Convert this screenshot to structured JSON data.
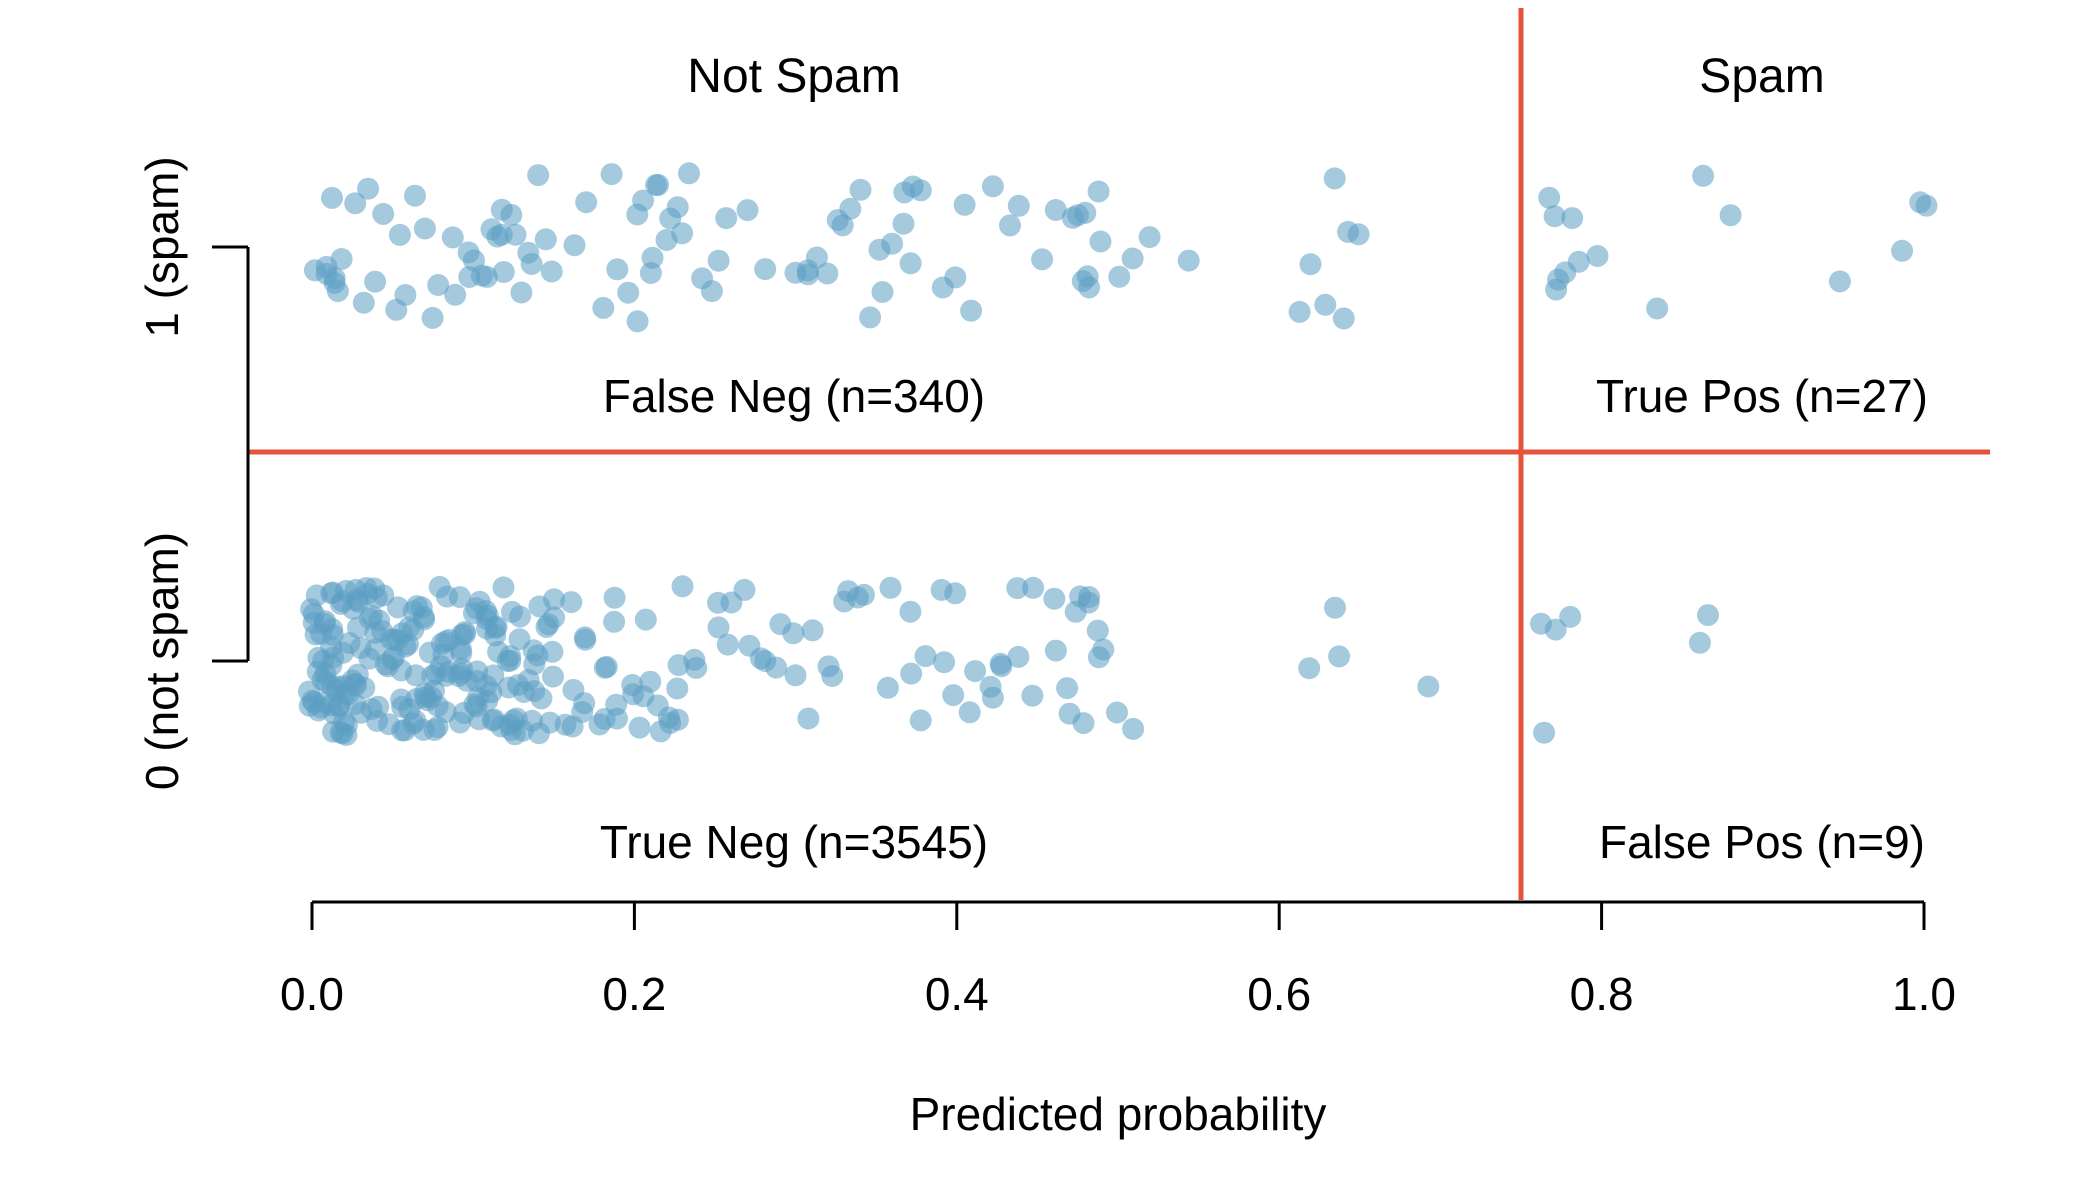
{
  "chart_data": {
    "type": "scatter",
    "title": "",
    "xlabel": "Predicted probability",
    "ylabel": "",
    "xlim": [
      0.0,
      1.0
    ],
    "x_ticks": [
      0.0,
      0.2,
      0.4,
      0.6,
      0.8,
      1.0
    ],
    "x_tick_labels": [
      "0.0",
      "0.2",
      "0.4",
      "0.6",
      "0.8",
      "1.0"
    ],
    "y_categories": [
      "0 (not spam)",
      "1 (spam)"
    ],
    "threshold": 0.75,
    "grid": false,
    "point_color": "#5b9fc2",
    "line_color": "#e5533c",
    "regions": {
      "not_spam_title": "Not Spam",
      "spam_title": "Spam",
      "false_neg": "False Neg (n=340)",
      "true_pos": "True Pos (n=27)",
      "true_neg": "True Neg (n=3545)",
      "false_pos": "False Pos (n=9)"
    },
    "series": [
      {
        "category": 1,
        "x": [
          0.003,
          0.006,
          0.008,
          0.01,
          0.012,
          0.015,
          0.018,
          0.02,
          0.025,
          0.03,
          0.035,
          0.04,
          0.045,
          0.05,
          0.055,
          0.06,
          0.065,
          0.07,
          0.075,
          0.08,
          0.085,
          0.09,
          0.095,
          0.1,
          0.103,
          0.106,
          0.11,
          0.112,
          0.115,
          0.118,
          0.12,
          0.122,
          0.125,
          0.128,
          0.13,
          0.132,
          0.135,
          0.14,
          0.145,
          0.15,
          0.16,
          0.17,
          0.18,
          0.185,
          0.19,
          0.195,
          0.2,
          0.202,
          0.205,
          0.208,
          0.21,
          0.212,
          0.215,
          0.218,
          0.22,
          0.225,
          0.23,
          0.235,
          0.24,
          0.245,
          0.25,
          0.26,
          0.27,
          0.28,
          0.3,
          0.305,
          0.31,
          0.315,
          0.32,
          0.325,
          0.33,
          0.335,
          0.34,
          0.345,
          0.35,
          0.355,
          0.36,
          0.365,
          0.37,
          0.372,
          0.375,
          0.38,
          0.39,
          0.4,
          0.405,
          0.41,
          0.42,
          0.43,
          0.44,
          0.45,
          0.46,
          0.47,
          0.475,
          0.478,
          0.48,
          0.482,
          0.485,
          0.488,
          0.49,
          0.5,
          0.51,
          0.52,
          0.545,
          0.61,
          0.62,
          0.63,
          0.635,
          0.64,
          0.643,
          0.65,
          0.765,
          0.768,
          0.77,
          0.772,
          0.775,
          0.78,
          0.785,
          0.8,
          0.833,
          0.862,
          0.878,
          0.945,
          0.984,
          1.0,
          0.999
        ],
        "y": [
          1,
          1,
          1,
          1,
          1,
          1,
          1,
          1,
          1,
          1,
          1,
          1,
          1,
          1,
          1,
          1,
          1,
          1,
          1,
          1,
          1,
          1,
          1,
          1,
          1,
          1,
          1,
          1,
          1,
          1,
          1,
          1,
          1,
          1,
          1,
          1,
          1,
          1,
          1,
          1,
          1,
          1,
          1,
          1,
          1,
          1,
          1,
          1,
          1,
          1,
          1,
          1,
          1,
          1,
          1,
          1,
          1,
          1,
          1,
          1,
          1,
          1,
          1,
          1,
          1,
          1,
          1,
          1,
          1,
          1,
          1,
          1,
          1,
          1,
          1,
          1,
          1,
          1,
          1,
          1,
          1,
          1,
          1,
          1,
          1,
          1,
          1,
          1,
          1,
          1,
          1,
          1,
          1,
          1,
          1,
          1,
          1,
          1,
          1,
          1,
          1,
          1,
          1,
          1,
          1,
          1,
          1,
          1,
          1,
          1,
          1,
          1,
          1,
          1,
          1,
          1,
          1,
          1,
          1,
          1,
          1,
          1,
          1,
          1,
          1
        ]
      },
      {
        "category": 0,
        "x": [
          0.0,
          0.002,
          0.004,
          0.006,
          0.008,
          0.01,
          0.012,
          0.014,
          0.016,
          0.018,
          0.02,
          0.022,
          0.025,
          0.028,
          0.03,
          0.033,
          0.036,
          0.04,
          0.043,
          0.046,
          0.05,
          0.053,
          0.056,
          0.06,
          0.063,
          0.066,
          0.07,
          0.073,
          0.076,
          0.08,
          0.083,
          0.086,
          0.09,
          0.093,
          0.096,
          0.1,
          0.103,
          0.106,
          0.11,
          0.113,
          0.116,
          0.12,
          0.123,
          0.126,
          0.13,
          0.135,
          0.14,
          0.145,
          0.15,
          0.16,
          0.17,
          0.18,
          0.19,
          0.2,
          0.205,
          0.21,
          0.215,
          0.22,
          0.225,
          0.23,
          0.24,
          0.25,
          0.26,
          0.27,
          0.28,
          0.29,
          0.3,
          0.31,
          0.32,
          0.33,
          0.34,
          0.36,
          0.37,
          0.38,
          0.39,
          0.4,
          0.41,
          0.42,
          0.43,
          0.44,
          0.45,
          0.46,
          0.47,
          0.475,
          0.48,
          0.485,
          0.49,
          0.5,
          0.51,
          0.62,
          0.635,
          0.64,
          0.69,
          0.762,
          0.765,
          0.77,
          0.78,
          0.86,
          0.865
        ],
        "y": [
          0,
          0,
          0,
          0,
          0,
          0,
          0,
          0,
          0,
          0,
          0,
          0,
          0,
          0,
          0,
          0,
          0,
          0,
          0,
          0,
          0,
          0,
          0,
          0,
          0,
          0,
          0,
          0,
          0,
          0,
          0,
          0,
          0,
          0,
          0,
          0,
          0,
          0,
          0,
          0,
          0,
          0,
          0,
          0,
          0,
          0,
          0,
          0,
          0,
          0,
          0,
          0,
          0,
          0,
          0,
          0,
          0,
          0,
          0,
          0,
          0,
          0,
          0,
          0,
          0,
          0,
          0,
          0,
          0,
          0,
          0,
          0,
          0,
          0,
          0,
          0,
          0,
          0,
          0,
          0,
          0,
          0,
          0,
          0,
          0,
          0,
          0,
          0,
          0,
          0,
          0,
          0,
          0,
          0,
          0,
          0,
          0,
          0,
          0
        ]
      }
    ]
  }
}
